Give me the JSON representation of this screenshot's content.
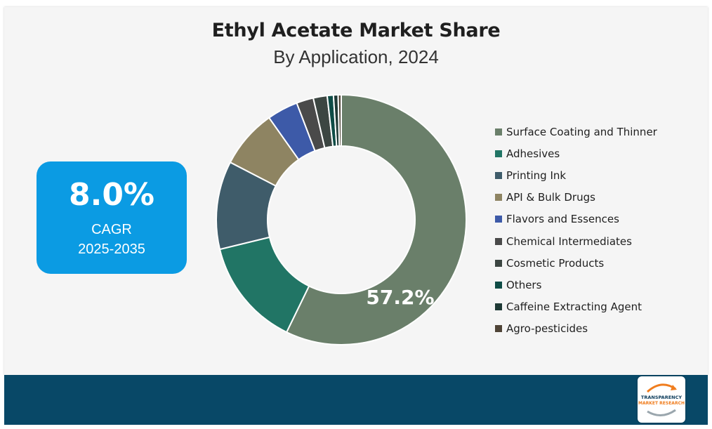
{
  "header": {
    "title": "Ethyl Acetate Market Share",
    "subtitle": "By Application, 2024"
  },
  "cagr": {
    "value": "8.0%",
    "label": "CAGR",
    "period": "2025-2035"
  },
  "colors": {
    "card_background": "#f5f5f5",
    "cagr_box": "#0b9be3",
    "footer": "#084867"
  },
  "logo": {
    "line1": "TRANSPARENCY",
    "line2": "MARKET RESEARCH"
  },
  "chart_data": {
    "type": "pie",
    "variant": "donut",
    "title": "Ethyl Acetate Market Share",
    "subtitle": "By Application, 2024",
    "legend_placement": "right",
    "highlight_label": "57.2%",
    "categories": [
      "Surface Coating and Thinner",
      "Adhesives",
      "Printing Ink",
      "API & Bulk Drugs",
      "Flavors and Essences",
      "Chemical Intermediates",
      "Cosmetic Products",
      "Others",
      "Caffeine Extracting Agent",
      "Agro-pesticides"
    ],
    "values": [
      57.2,
      14.0,
      11.4,
      7.6,
      4.0,
      2.2,
      1.8,
      0.8,
      0.6,
      0.4
    ],
    "colors": [
      "#6a7f6a",
      "#217565",
      "#3f5c6a",
      "#8e8462",
      "#3d5aa8",
      "#4a4a4a",
      "#3c4642",
      "#0e4c46",
      "#1f3a36",
      "#4f4437"
    ]
  }
}
